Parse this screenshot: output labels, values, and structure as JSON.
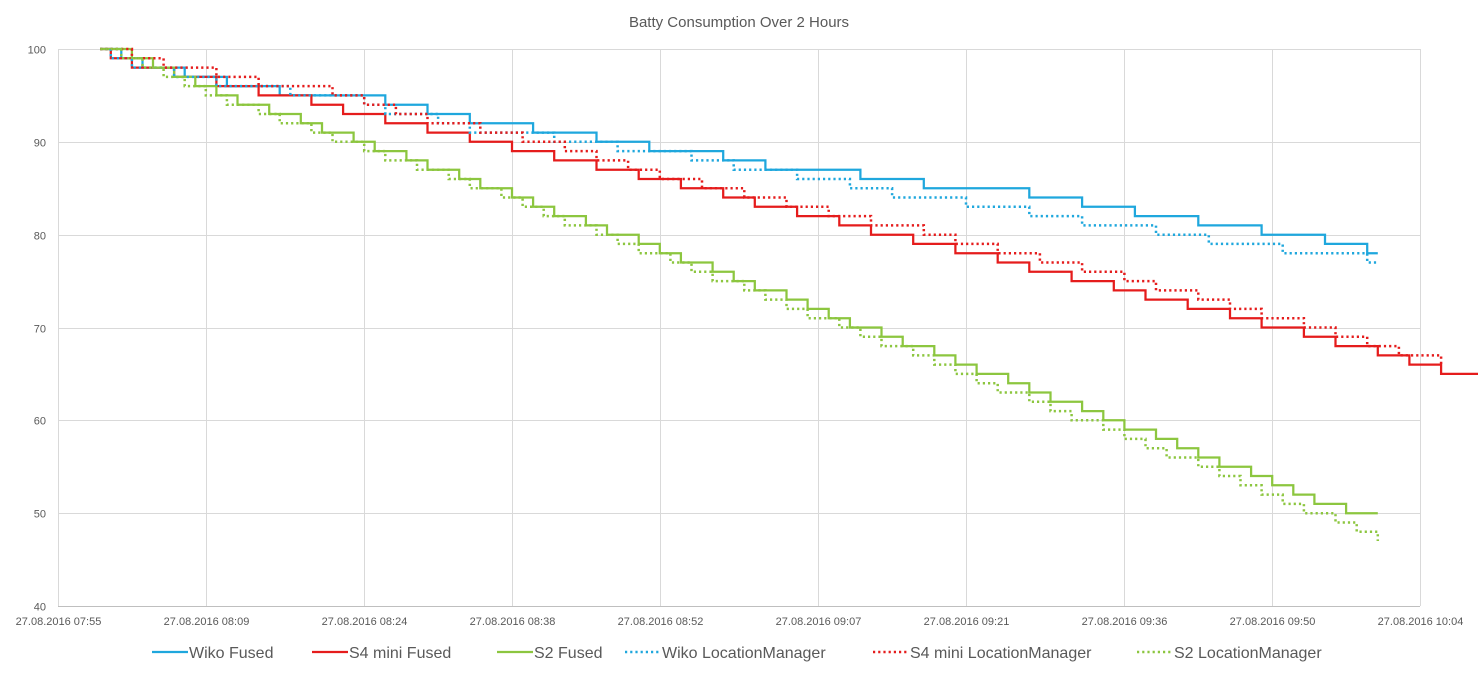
{
  "chart_data": {
    "type": "line",
    "title": "Batty Consumption Over 2 Hours",
    "xlabel": "",
    "ylabel": "",
    "ylim": [
      40,
      100
    ],
    "yticks": [
      40,
      50,
      60,
      70,
      80,
      90,
      100
    ],
    "xlim": [
      "27.08.2016 07:55",
      "27.08.2016 10:04"
    ],
    "xticks": [
      "27.08.2016 07:55",
      "27.08.2016 08:09",
      "27.08.2016 08:24",
      "27.08.2016 08:38",
      "27.08.2016 08:52",
      "27.08.2016 09:07",
      "27.08.2016 09:21",
      "27.08.2016 09:36",
      "27.08.2016 09:50",
      "27.08.2016 10:04"
    ],
    "grid": true,
    "legend_position": "bottom",
    "series": [
      {
        "name": "Wiko Fused",
        "color": "#1FA7DD",
        "dash": "solid",
        "points": [
          [
            "27.08.2016 07:59",
            100
          ],
          [
            "27.08.2016 08:01",
            99
          ],
          [
            "27.08.2016 08:03",
            98
          ],
          [
            "27.08.2016 08:07",
            97
          ],
          [
            "27.08.2016 08:11",
            96
          ],
          [
            "27.08.2016 08:16",
            95
          ],
          [
            "27.08.2016 08:26",
            94
          ],
          [
            "27.08.2016 08:30",
            93
          ],
          [
            "27.08.2016 08:34",
            92
          ],
          [
            "27.08.2016 08:40",
            91
          ],
          [
            "27.08.2016 08:46",
            90
          ],
          [
            "27.08.2016 08:51",
            89
          ],
          [
            "27.08.2016 08:58",
            88
          ],
          [
            "27.08.2016 09:02",
            87
          ],
          [
            "27.08.2016 09:11",
            86
          ],
          [
            "27.08.2016 09:17",
            85
          ],
          [
            "27.08.2016 09:27",
            84
          ],
          [
            "27.08.2016 09:32",
            83
          ],
          [
            "27.08.2016 09:37",
            82
          ],
          [
            "27.08.2016 09:43",
            81
          ],
          [
            "27.08.2016 09:49",
            80
          ],
          [
            "27.08.2016 09:55",
            79
          ],
          [
            "27.08.2016 09:59",
            78
          ],
          [
            "27.08.2016 10:00",
            78
          ]
        ]
      },
      {
        "name": "S4 mini Fused",
        "color": "#E51C1C",
        "dash": "solid",
        "points": [
          [
            "27.08.2016 07:59",
            100
          ],
          [
            "27.08.2016 08:00",
            99
          ],
          [
            "27.08.2016 08:02",
            98
          ],
          [
            "27.08.2016 08:06",
            97
          ],
          [
            "27.08.2016 08:10",
            96
          ],
          [
            "27.08.2016 08:14",
            95
          ],
          [
            "27.08.2016 08:19",
            94
          ],
          [
            "27.08.2016 08:22",
            93
          ],
          [
            "27.08.2016 08:26",
            92
          ],
          [
            "27.08.2016 08:30",
            91
          ],
          [
            "27.08.2016 08:34",
            90
          ],
          [
            "27.08.2016 08:38",
            89
          ],
          [
            "27.08.2016 08:42",
            88
          ],
          [
            "27.08.2016 08:46",
            87
          ],
          [
            "27.08.2016 08:50",
            86
          ],
          [
            "27.08.2016 08:54",
            85
          ],
          [
            "27.08.2016 08:58",
            84
          ],
          [
            "27.08.2016 09:01",
            83
          ],
          [
            "27.08.2016 09:05",
            82
          ],
          [
            "27.08.2016 09:09",
            81
          ],
          [
            "27.08.2016 09:12",
            80
          ],
          [
            "27.08.2016 09:16",
            79
          ],
          [
            "27.08.2016 09:20",
            78
          ],
          [
            "27.08.2016 09:24",
            77
          ],
          [
            "27.08.2016 09:27",
            76
          ],
          [
            "27.08.2016 09:31",
            75
          ],
          [
            "27.08.2016 09:35",
            74
          ],
          [
            "27.08.2016 09:38",
            73
          ],
          [
            "27.08.2016 09:42",
            72
          ],
          [
            "27.08.2016 09:46",
            71
          ],
          [
            "27.08.2016 09:49",
            70
          ],
          [
            "27.08.2016 09:53",
            69
          ],
          [
            "27.08.2016 09:56",
            68
          ],
          [
            "27.08.2016 10:00",
            67
          ],
          [
            "27.08.2016 10:03",
            66
          ],
          [
            "27.08.2016 10:06",
            65
          ],
          [
            "27.08.2016 10:11",
            64
          ],
          [
            "27.08.2016 10:14",
            64
          ]
        ]
      },
      {
        "name": "S2 Fused",
        "color": "#8CC63F",
        "dash": "solid",
        "points": [
          [
            "27.08.2016 07:59",
            100
          ],
          [
            "27.08.2016 08:02",
            99
          ],
          [
            "27.08.2016 08:04",
            98
          ],
          [
            "27.08.2016 08:06",
            97
          ],
          [
            "27.08.2016 08:08",
            96
          ],
          [
            "27.08.2016 08:10",
            95
          ],
          [
            "27.08.2016 08:12",
            94
          ],
          [
            "27.08.2016 08:15",
            93
          ],
          [
            "27.08.2016 08:18",
            92
          ],
          [
            "27.08.2016 08:20",
            91
          ],
          [
            "27.08.2016 08:23",
            90
          ],
          [
            "27.08.2016 08:25",
            89
          ],
          [
            "27.08.2016 08:28",
            88
          ],
          [
            "27.08.2016 08:30",
            87
          ],
          [
            "27.08.2016 08:33",
            86
          ],
          [
            "27.08.2016 08:35",
            85
          ],
          [
            "27.08.2016 08:38",
            84
          ],
          [
            "27.08.2016 08:40",
            83
          ],
          [
            "27.08.2016 08:42",
            82
          ],
          [
            "27.08.2016 08:45",
            81
          ],
          [
            "27.08.2016 08:47",
            80
          ],
          [
            "27.08.2016 08:50",
            79
          ],
          [
            "27.08.2016 08:52",
            78
          ],
          [
            "27.08.2016 08:54",
            77
          ],
          [
            "27.08.2016 08:57",
            76
          ],
          [
            "27.08.2016 08:59",
            75
          ],
          [
            "27.08.2016 09:01",
            74
          ],
          [
            "27.08.2016 09:04",
            73
          ],
          [
            "27.08.2016 09:06",
            72
          ],
          [
            "27.08.2016 09:08",
            71
          ],
          [
            "27.08.2016 09:10",
            70
          ],
          [
            "27.08.2016 09:13",
            69
          ],
          [
            "27.08.2016 09:15",
            68
          ],
          [
            "27.08.2016 09:18",
            67
          ],
          [
            "27.08.2016 09:20",
            66
          ],
          [
            "27.08.2016 09:22",
            65
          ],
          [
            "27.08.2016 09:25",
            64
          ],
          [
            "27.08.2016 09:27",
            63
          ],
          [
            "27.08.2016 09:29",
            62
          ],
          [
            "27.08.2016 09:32",
            61
          ],
          [
            "27.08.2016 09:34",
            60
          ],
          [
            "27.08.2016 09:36",
            59
          ],
          [
            "27.08.2016 09:39",
            58
          ],
          [
            "27.08.2016 09:41",
            57
          ],
          [
            "27.08.2016 09:43",
            56
          ],
          [
            "27.08.2016 09:45",
            55
          ],
          [
            "27.08.2016 09:48",
            54
          ],
          [
            "27.08.2016 09:50",
            53
          ],
          [
            "27.08.2016 09:52",
            52
          ],
          [
            "27.08.2016 09:54",
            51
          ],
          [
            "27.08.2016 09:57",
            50
          ],
          [
            "27.08.2016 10:00",
            50
          ]
        ]
      },
      {
        "name": "Wiko LocationManager",
        "color": "#1FA7DD",
        "dash": "dotted",
        "points": [
          [
            "27.08.2016 07:59",
            100
          ],
          [
            "27.08.2016 08:00",
            99
          ],
          [
            "27.08.2016 08:02",
            98
          ],
          [
            "27.08.2016 08:06",
            97
          ],
          [
            "27.08.2016 08:10",
            96
          ],
          [
            "27.08.2016 08:17",
            95
          ],
          [
            "27.08.2016 08:24",
            94
          ],
          [
            "27.08.2016 08:26",
            93
          ],
          [
            "27.08.2016 08:31",
            92
          ],
          [
            "27.08.2016 08:34",
            91
          ],
          [
            "27.08.2016 08:42",
            90
          ],
          [
            "27.08.2016 08:48",
            89
          ],
          [
            "27.08.2016 08:55",
            88
          ],
          [
            "27.08.2016 08:59",
            87
          ],
          [
            "27.08.2016 09:05",
            86
          ],
          [
            "27.08.2016 09:10",
            85
          ],
          [
            "27.08.2016 09:14",
            84
          ],
          [
            "27.08.2016 09:21",
            83
          ],
          [
            "27.08.2016 09:27",
            82
          ],
          [
            "27.08.2016 09:32",
            81
          ],
          [
            "27.08.2016 09:39",
            80
          ],
          [
            "27.08.2016 09:44",
            79
          ],
          [
            "27.08.2016 09:51",
            78
          ],
          [
            "27.08.2016 09:59",
            77
          ],
          [
            "27.08.2016 10:00",
            77
          ]
        ]
      },
      {
        "name": "S4 mini LocationManager",
        "color": "#E51C1C",
        "dash": "dotted",
        "points": [
          [
            "27.08.2016 07:59",
            100
          ],
          [
            "27.08.2016 08:02",
            99
          ],
          [
            "27.08.2016 08:05",
            98
          ],
          [
            "27.08.2016 08:10",
            97
          ],
          [
            "27.08.2016 08:14",
            96
          ],
          [
            "27.08.2016 08:21",
            95
          ],
          [
            "27.08.2016 08:24",
            94
          ],
          [
            "27.08.2016 08:27",
            93
          ],
          [
            "27.08.2016 08:30",
            92
          ],
          [
            "27.08.2016 08:35",
            91
          ],
          [
            "27.08.2016 08:39",
            90
          ],
          [
            "27.08.2016 08:43",
            89
          ],
          [
            "27.08.2016 08:46",
            88
          ],
          [
            "27.08.2016 08:49",
            87
          ],
          [
            "27.08.2016 08:52",
            86
          ],
          [
            "27.08.2016 08:56",
            85
          ],
          [
            "27.08.2016 09:00",
            84
          ],
          [
            "27.08.2016 09:04",
            83
          ],
          [
            "27.08.2016 09:08",
            82
          ],
          [
            "27.08.2016 09:12",
            81
          ],
          [
            "27.08.2016 09:17",
            80
          ],
          [
            "27.08.2016 09:20",
            79
          ],
          [
            "27.08.2016 09:24",
            78
          ],
          [
            "27.08.2016 09:28",
            77
          ],
          [
            "27.08.2016 09:32",
            76
          ],
          [
            "27.08.2016 09:36",
            75
          ],
          [
            "27.08.2016 09:39",
            74
          ],
          [
            "27.08.2016 09:43",
            73
          ],
          [
            "27.08.2016 09:46",
            72
          ],
          [
            "27.08.2016 09:49",
            71
          ],
          [
            "27.08.2016 09:53",
            70
          ],
          [
            "27.08.2016 09:56",
            69
          ],
          [
            "27.08.2016 09:59",
            68
          ],
          [
            "27.08.2016 10:02",
            67
          ],
          [
            "27.08.2016 10:06",
            66
          ]
        ]
      },
      {
        "name": "S2 LocationManager",
        "color": "#8CC63F",
        "dash": "dotted",
        "points": [
          [
            "27.08.2016 07:59",
            100
          ],
          [
            "27.08.2016 08:01",
            99
          ],
          [
            "27.08.2016 08:03",
            98
          ],
          [
            "27.08.2016 08:05",
            97
          ],
          [
            "27.08.2016 08:07",
            96
          ],
          [
            "27.08.2016 08:09",
            95
          ],
          [
            "27.08.2016 08:11",
            94
          ],
          [
            "27.08.2016 08:14",
            93
          ],
          [
            "27.08.2016 08:16",
            92
          ],
          [
            "27.08.2016 08:19",
            91
          ],
          [
            "27.08.2016 08:21",
            90
          ],
          [
            "27.08.2016 08:24",
            89
          ],
          [
            "27.08.2016 08:26",
            88
          ],
          [
            "27.08.2016 08:29",
            87
          ],
          [
            "27.08.2016 08:32",
            86
          ],
          [
            "27.08.2016 08:34",
            85
          ],
          [
            "27.08.2016 08:37",
            84
          ],
          [
            "27.08.2016 08:39",
            83
          ],
          [
            "27.08.2016 08:41",
            82
          ],
          [
            "27.08.2016 08:43",
            81
          ],
          [
            "27.08.2016 08:46",
            80
          ],
          [
            "27.08.2016 08:48",
            79
          ],
          [
            "27.08.2016 08:50",
            78
          ],
          [
            "27.08.2016 08:53",
            77
          ],
          [
            "27.08.2016 08:55",
            76
          ],
          [
            "27.08.2016 08:57",
            75
          ],
          [
            "27.08.2016 09:00",
            74
          ],
          [
            "27.08.2016 09:02",
            73
          ],
          [
            "27.08.2016 09:04",
            72
          ],
          [
            "27.08.2016 09:06",
            71
          ],
          [
            "27.08.2016 09:09",
            70
          ],
          [
            "27.08.2016 09:11",
            69
          ],
          [
            "27.08.2016 09:13",
            68
          ],
          [
            "27.08.2016 09:16",
            67
          ],
          [
            "27.08.2016 09:18",
            66
          ],
          [
            "27.08.2016 09:20",
            65
          ],
          [
            "27.08.2016 09:22",
            64
          ],
          [
            "27.08.2016 09:24",
            63
          ],
          [
            "27.08.2016 09:27",
            62
          ],
          [
            "27.08.2016 09:29",
            61
          ],
          [
            "27.08.2016 09:31",
            60
          ],
          [
            "27.08.2016 09:34",
            59
          ],
          [
            "27.08.2016 09:36",
            58
          ],
          [
            "27.08.2016 09:38",
            57
          ],
          [
            "27.08.2016 09:40",
            56
          ],
          [
            "27.08.2016 09:43",
            55
          ],
          [
            "27.08.2016 09:45",
            54
          ],
          [
            "27.08.2016 09:47",
            53
          ],
          [
            "27.08.2016 09:49",
            52
          ],
          [
            "27.08.2016 09:51",
            51
          ],
          [
            "27.08.2016 09:53",
            50
          ],
          [
            "27.08.2016 09:56",
            49
          ],
          [
            "27.08.2016 09:58",
            48
          ],
          [
            "27.08.2016 10:00",
            47
          ]
        ]
      }
    ]
  }
}
